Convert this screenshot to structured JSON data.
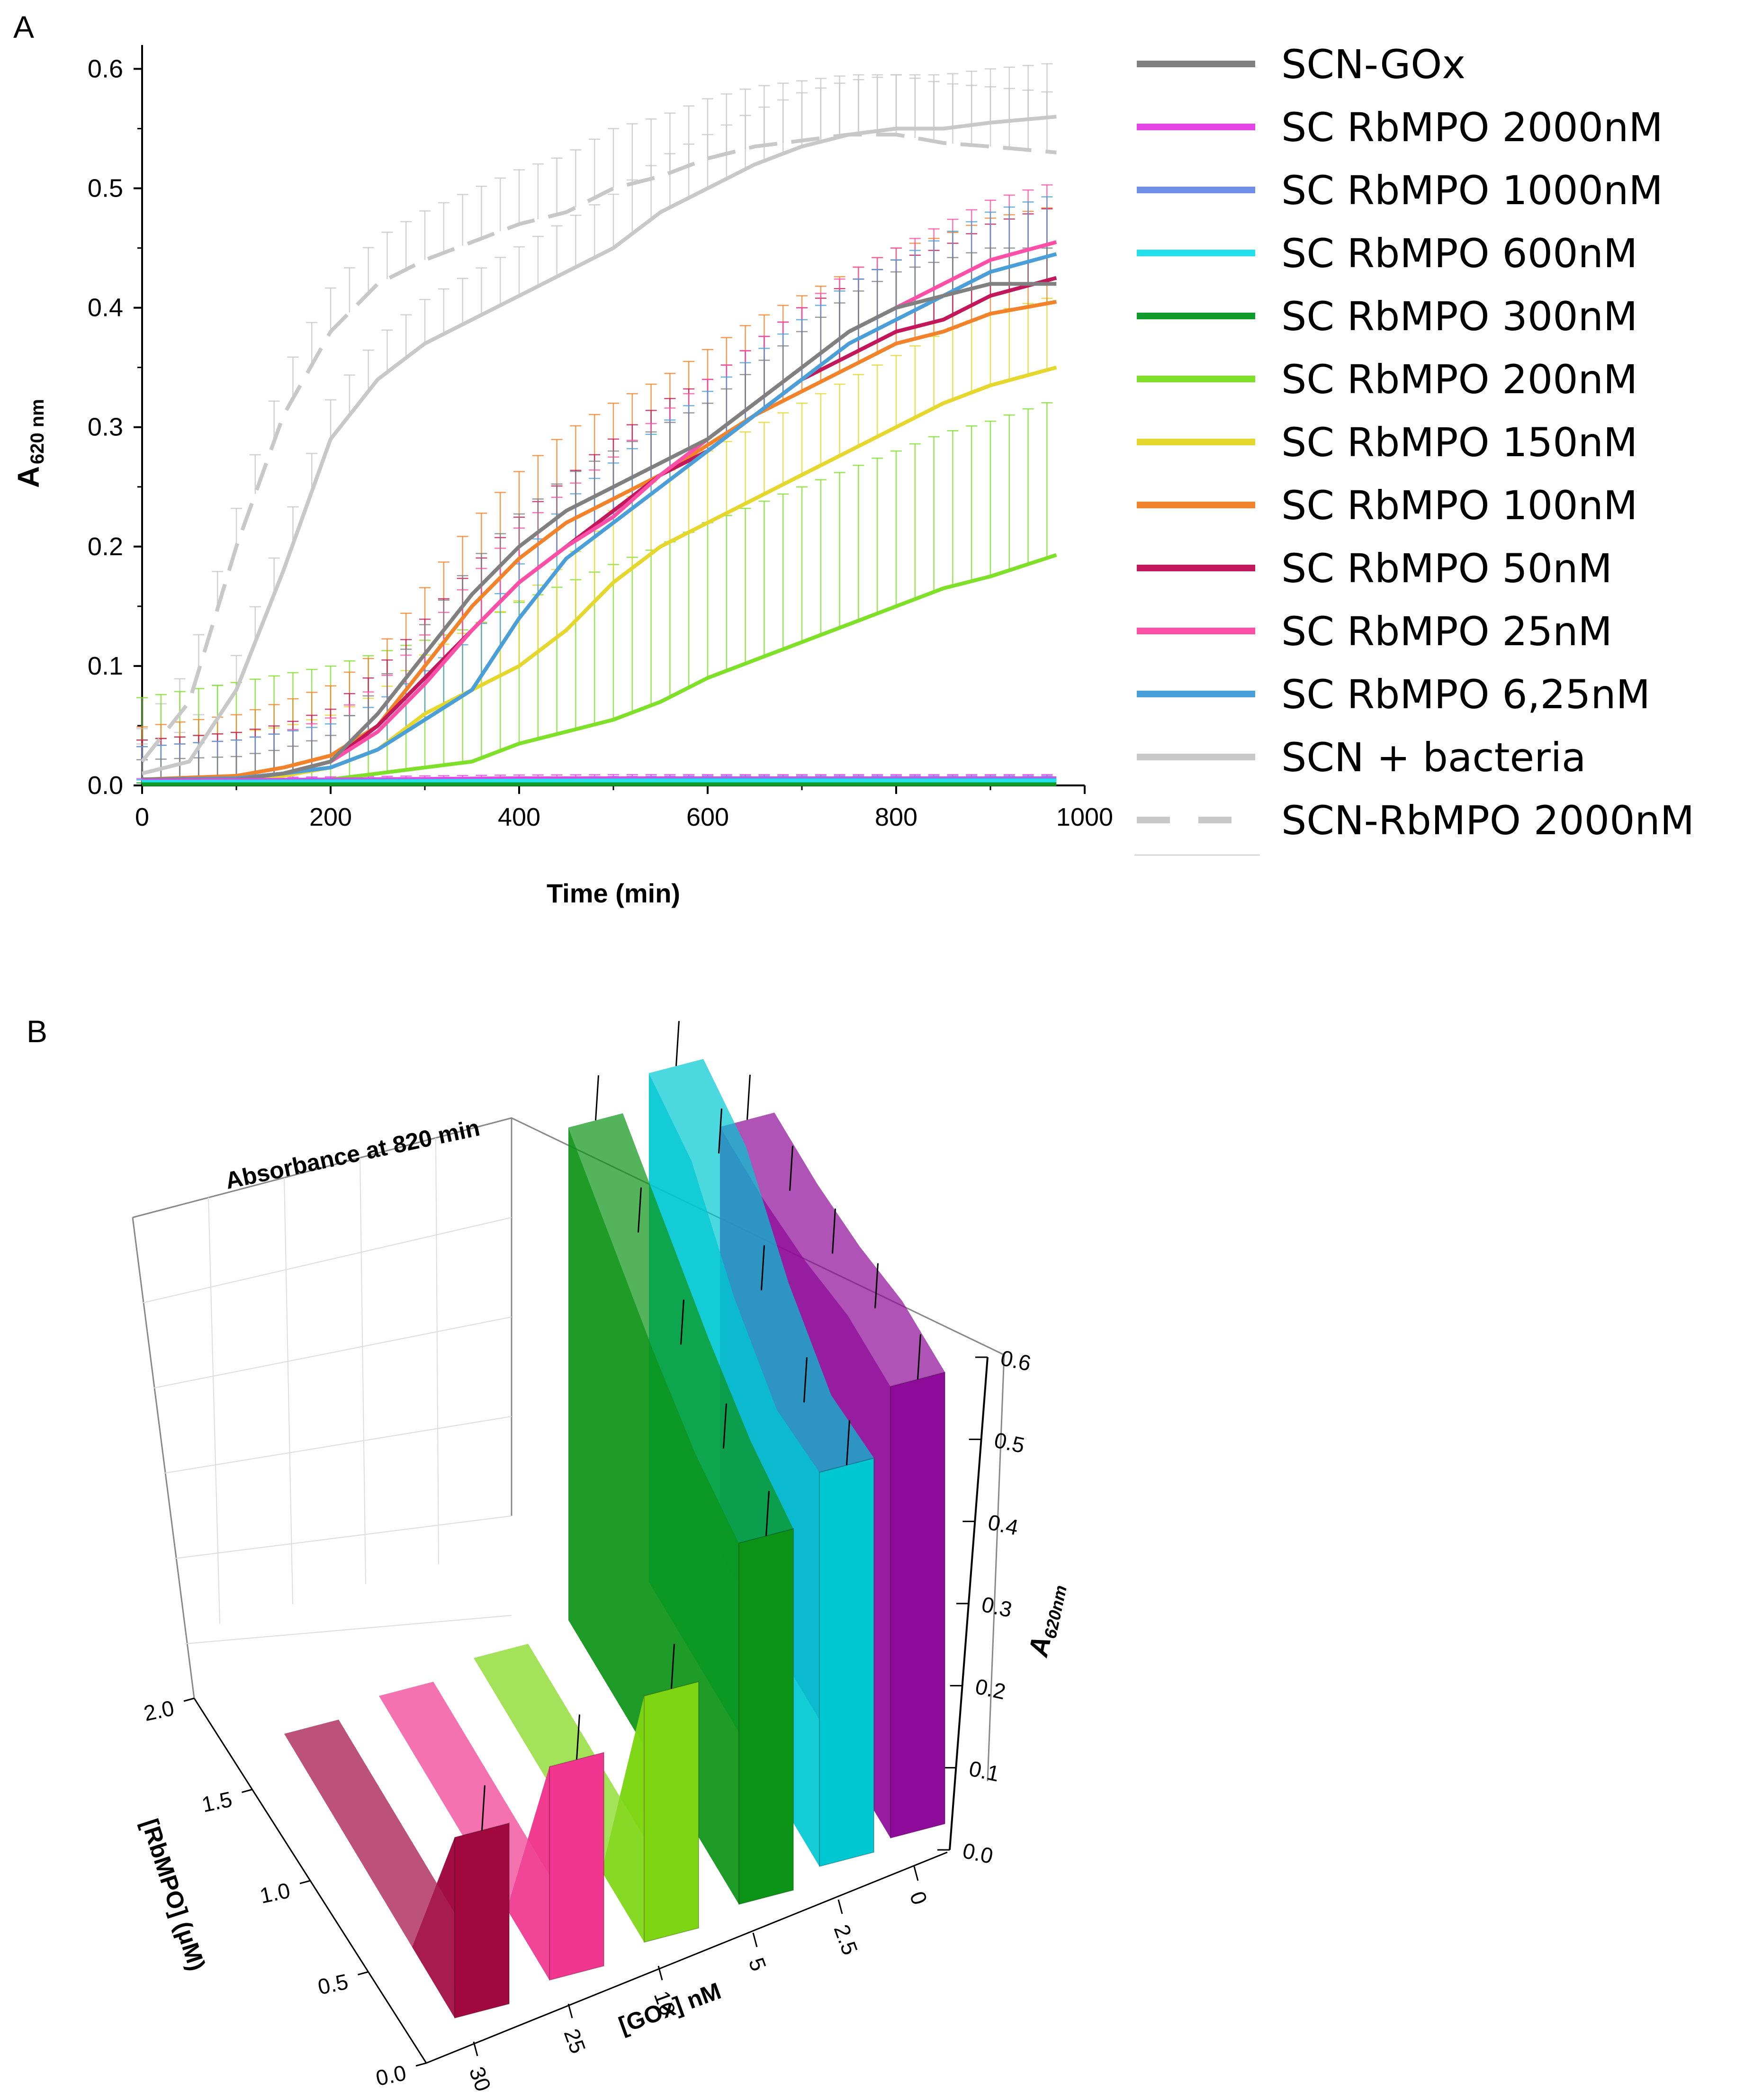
{
  "panels": {
    "a": "A",
    "b": "B"
  },
  "chart_data": [
    {
      "type": "line",
      "panel": "A",
      "title": "",
      "xlabel": "Time (min)",
      "ylabel_main": "A",
      "ylabel_sub": "620 nm",
      "xlim": [
        0,
        1000
      ],
      "ylim": [
        0,
        0.62
      ],
      "x_ticks": [
        "0",
        "200",
        "400",
        "600",
        "800",
        "1000"
      ],
      "y_ticks": [
        "0.0",
        "0.1",
        "0.2",
        "0.3",
        "0.4",
        "0.5",
        "0.6"
      ],
      "x_tick_values": [
        0,
        200,
        400,
        600,
        800,
        1000
      ],
      "y_tick_values": [
        0,
        0.1,
        0.2,
        0.3,
        0.4,
        0.5,
        0.6
      ],
      "legend_position": "right",
      "series": [
        {
          "name": "SCN-GOx",
          "color": "#808080",
          "style": "solid",
          "err": 0.03,
          "points": [
            [
              0,
              0.005
            ],
            [
              100,
              0.005
            ],
            [
              150,
              0.01
            ],
            [
              200,
              0.02
            ],
            [
              250,
              0.06
            ],
            [
              300,
              0.11
            ],
            [
              350,
              0.16
            ],
            [
              400,
              0.2
            ],
            [
              450,
              0.23
            ],
            [
              500,
              0.25
            ],
            [
              550,
              0.27
            ],
            [
              600,
              0.29
            ],
            [
              650,
              0.32
            ],
            [
              700,
              0.35
            ],
            [
              750,
              0.38
            ],
            [
              800,
              0.4
            ],
            [
              850,
              0.41
            ],
            [
              900,
              0.42
            ],
            [
              970,
              0.42
            ]
          ]
        },
        {
          "name": "SC RbMPO 2000nM",
          "color": "#e645e6",
          "style": "solid",
          "err": 0.003,
          "points": [
            [
              0,
              0.004
            ],
            [
              200,
              0.005
            ],
            [
              400,
              0.006
            ],
            [
              600,
              0.006
            ],
            [
              800,
              0.006
            ],
            [
              970,
              0.006
            ]
          ]
        },
        {
          "name": "SC RbMPO 1000nM",
          "color": "#6f8fe6",
          "style": "solid",
          "err": 0.003,
          "points": [
            [
              0,
              0.003
            ],
            [
              200,
              0.004
            ],
            [
              400,
              0.004
            ],
            [
              600,
              0.005
            ],
            [
              800,
              0.005
            ],
            [
              970,
              0.005
            ]
          ]
        },
        {
          "name": "SC RbMPO 600nM",
          "color": "#22e0ee",
          "style": "solid",
          "err": 0.003,
          "points": [
            [
              0,
              0.003
            ],
            [
              200,
              0.003
            ],
            [
              400,
              0.004
            ],
            [
              600,
              0.004
            ],
            [
              800,
              0.004
            ],
            [
              970,
              0.004
            ]
          ]
        },
        {
          "name": "SC RbMPO 300nM",
          "color": "#0e9b2b",
          "style": "solid",
          "err": 0.002,
          "points": [
            [
              0,
              0.001
            ],
            [
              200,
              0.001
            ],
            [
              400,
              0.001
            ],
            [
              600,
              0.001
            ],
            [
              800,
              0.001
            ],
            [
              970,
              0.001
            ]
          ]
        },
        {
          "name": "SC RbMPO 200nM",
          "color": "#7fe02a",
          "style": "solid",
          "err": 0.13,
          "points": [
            [
              0,
              0.002
            ],
            [
              100,
              0.003
            ],
            [
              200,
              0.005
            ],
            [
              250,
              0.01
            ],
            [
              300,
              0.015
            ],
            [
              350,
              0.02
            ],
            [
              400,
              0.035
            ],
            [
              450,
              0.045
            ],
            [
              500,
              0.055
            ],
            [
              550,
              0.07
            ],
            [
              600,
              0.09
            ],
            [
              650,
              0.105
            ],
            [
              700,
              0.12
            ],
            [
              750,
              0.135
            ],
            [
              800,
              0.15
            ],
            [
              850,
              0.165
            ],
            [
              900,
              0.175
            ],
            [
              970,
              0.193
            ]
          ]
        },
        {
          "name": "SC RbMPO 150nM",
          "color": "#e6d72e",
          "style": "solid",
          "err": 0.06,
          "points": [
            [
              0,
              0.005
            ],
            [
              100,
              0.006
            ],
            [
              150,
              0.008
            ],
            [
              200,
              0.015
            ],
            [
              250,
              0.03
            ],
            [
              300,
              0.06
            ],
            [
              350,
              0.08
            ],
            [
              400,
              0.1
            ],
            [
              450,
              0.13
            ],
            [
              500,
              0.17
            ],
            [
              550,
              0.2
            ],
            [
              600,
              0.22
            ],
            [
              650,
              0.24
            ],
            [
              700,
              0.26
            ],
            [
              750,
              0.28
            ],
            [
              800,
              0.3
            ],
            [
              850,
              0.32
            ],
            [
              900,
              0.335
            ],
            [
              970,
              0.35
            ]
          ]
        },
        {
          "name": "SC RbMPO 100nM",
          "color": "#f2832a",
          "style": "solid",
          "err": 0.08,
          "points": [
            [
              0,
              0.005
            ],
            [
              100,
              0.008
            ],
            [
              150,
              0.015
            ],
            [
              200,
              0.025
            ],
            [
              250,
              0.05
            ],
            [
              300,
              0.1
            ],
            [
              350,
              0.15
            ],
            [
              400,
              0.19
            ],
            [
              450,
              0.22
            ],
            [
              500,
              0.24
            ],
            [
              550,
              0.26
            ],
            [
              600,
              0.285
            ],
            [
              650,
              0.31
            ],
            [
              700,
              0.33
            ],
            [
              750,
              0.35
            ],
            [
              800,
              0.37
            ],
            [
              850,
              0.38
            ],
            [
              900,
              0.395
            ],
            [
              970,
              0.405
            ]
          ]
        },
        {
          "name": "SC RbMPO 50nM",
          "color": "#c2185b",
          "style": "solid",
          "err": 0.06,
          "points": [
            [
              0,
              0.005
            ],
            [
              100,
              0.006
            ],
            [
              150,
              0.01
            ],
            [
              200,
              0.02
            ],
            [
              250,
              0.05
            ],
            [
              300,
              0.09
            ],
            [
              350,
              0.13
            ],
            [
              400,
              0.17
            ],
            [
              450,
              0.2
            ],
            [
              500,
              0.23
            ],
            [
              550,
              0.26
            ],
            [
              600,
              0.28
            ],
            [
              650,
              0.31
            ],
            [
              700,
              0.34
            ],
            [
              750,
              0.36
            ],
            [
              800,
              0.38
            ],
            [
              850,
              0.39
            ],
            [
              900,
              0.41
            ],
            [
              970,
              0.425
            ]
          ]
        },
        {
          "name": "SC RbMPO 25nM",
          "color": "#ff4fa7",
          "style": "solid",
          "err": 0.05,
          "points": [
            [
              0,
              0.005
            ],
            [
              100,
              0.006
            ],
            [
              150,
              0.01
            ],
            [
              200,
              0.02
            ],
            [
              250,
              0.045
            ],
            [
              300,
              0.085
            ],
            [
              350,
              0.13
            ],
            [
              400,
              0.17
            ],
            [
              450,
              0.2
            ],
            [
              500,
              0.225
            ],
            [
              550,
              0.26
            ],
            [
              600,
              0.29
            ],
            [
              650,
              0.32
            ],
            [
              700,
              0.35
            ],
            [
              750,
              0.38
            ],
            [
              800,
              0.4
            ],
            [
              850,
              0.42
            ],
            [
              900,
              0.44
            ],
            [
              970,
              0.455
            ]
          ]
        },
        {
          "name": "SC RbMPO 6,25nM",
          "color": "#4a9fd8",
          "style": "solid",
          "err": 0.05,
          "points": [
            [
              0,
              0.005
            ],
            [
              100,
              0.006
            ],
            [
              150,
              0.01
            ],
            [
              200,
              0.015
            ],
            [
              250,
              0.03
            ],
            [
              300,
              0.055
            ],
            [
              350,
              0.08
            ],
            [
              400,
              0.14
            ],
            [
              450,
              0.19
            ],
            [
              500,
              0.22
            ],
            [
              550,
              0.25
            ],
            [
              600,
              0.28
            ],
            [
              650,
              0.31
            ],
            [
              700,
              0.34
            ],
            [
              750,
              0.37
            ],
            [
              800,
              0.39
            ],
            [
              850,
              0.41
            ],
            [
              900,
              0.43
            ],
            [
              970,
              0.445
            ]
          ]
        },
        {
          "name": "SCN + bacteria",
          "color": "#c8c8c8",
          "style": "solid",
          "err": 0.045,
          "points": [
            [
              0,
              0.01
            ],
            [
              50,
              0.02
            ],
            [
              100,
              0.08
            ],
            [
              150,
              0.18
            ],
            [
              200,
              0.29
            ],
            [
              250,
              0.34
            ],
            [
              300,
              0.37
            ],
            [
              350,
              0.39
            ],
            [
              400,
              0.41
            ],
            [
              450,
              0.43
            ],
            [
              500,
              0.45
            ],
            [
              550,
              0.48
            ],
            [
              600,
              0.5
            ],
            [
              650,
              0.52
            ],
            [
              700,
              0.535
            ],
            [
              750,
              0.545
            ],
            [
              800,
              0.55
            ],
            [
              850,
              0.55
            ],
            [
              900,
              0.555
            ],
            [
              970,
              0.56
            ]
          ]
        },
        {
          "name": "SCN-RbMPO 2000nM",
          "color": "#c8c8c8",
          "style": "dashed",
          "err": 0.05,
          "points": [
            [
              0,
              0.02
            ],
            [
              50,
              0.07
            ],
            [
              100,
              0.2
            ],
            [
              150,
              0.31
            ],
            [
              200,
              0.38
            ],
            [
              250,
              0.42
            ],
            [
              300,
              0.44
            ],
            [
              350,
              0.455
            ],
            [
              400,
              0.47
            ],
            [
              450,
              0.48
            ],
            [
              500,
              0.5
            ],
            [
              550,
              0.51
            ],
            [
              600,
              0.525
            ],
            [
              650,
              0.535
            ],
            [
              700,
              0.54
            ],
            [
              750,
              0.545
            ],
            [
              800,
              0.545
            ],
            [
              850,
              0.538
            ],
            [
              900,
              0.535
            ],
            [
              970,
              0.53
            ]
          ]
        }
      ]
    },
    {
      "type": "bar3d",
      "panel": "B",
      "title": "Absorbance at 820 min",
      "xlabel": "[GOx] nM",
      "ylabel": "[RbMPO] (μM)",
      "zlabel_main": "A",
      "zlabel_sub": "620nm",
      "gox_ticks": [
        "0",
        "2.5",
        "5",
        "10",
        "25",
        "30"
      ],
      "rbmpo_ticks": [
        "0.0",
        "0.5",
        "1.0",
        "1.5",
        "2.0"
      ],
      "z_ticks": [
        "0.0",
        "0.1",
        "0.2",
        "0.3",
        "0.4",
        "0.5",
        "0.6"
      ],
      "zlim": [
        0,
        0.6
      ],
      "series": [
        {
          "gox": "0",
          "color": "#8e0a98",
          "values": [
            0.55,
            0.55,
            0.53,
            0.52,
            0.52
          ]
        },
        {
          "gox": "2.5",
          "color": "#00c8d2",
          "values": [
            0.48,
            0.47,
            0.52,
            0.6,
            0.62
          ]
        },
        {
          "gox": "5",
          "color": "#0c9416",
          "values": [
            0.44,
            0.46,
            0.5,
            0.55,
            0.6
          ]
        },
        {
          "gox": "10",
          "color": "#7ed612",
          "values": [
            0.3,
            0.0,
            0.0,
            0.0,
            0.0
          ]
        },
        {
          "gox": "25",
          "color": "#f0368f",
          "values": [
            0.26,
            0.0,
            0.0,
            0.0,
            0.0
          ]
        },
        {
          "gox": "30",
          "color": "#a0083e",
          "values": [
            0.22,
            0.0,
            0.0,
            0.0,
            0.0
          ]
        }
      ]
    }
  ]
}
